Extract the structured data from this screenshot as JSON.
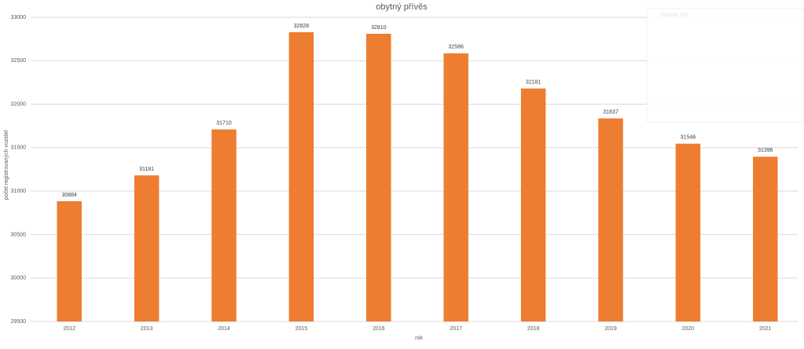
{
  "chart_data": {
    "type": "bar",
    "title": "obytný přívěs",
    "x_label": "rok",
    "y_label": "počet registrovaných vozidel",
    "categories": [
      "2012",
      "2013",
      "2014",
      "2015",
      "2016",
      "2017",
      "2018",
      "2019",
      "2020",
      "2021"
    ],
    "values": [
      30884,
      31181,
      31710,
      32828,
      32810,
      32586,
      32181,
      31837,
      31546,
      31396
    ],
    "color": "#ed7d31",
    "ylim": [
      29500,
      33000
    ],
    "yticks": [
      29500,
      30000,
      30500,
      31000,
      31500,
      32000,
      32500,
      33000
    ],
    "grid": true,
    "data_labels": true
  },
  "overlay": {
    "title": "Snipping Tool"
  }
}
